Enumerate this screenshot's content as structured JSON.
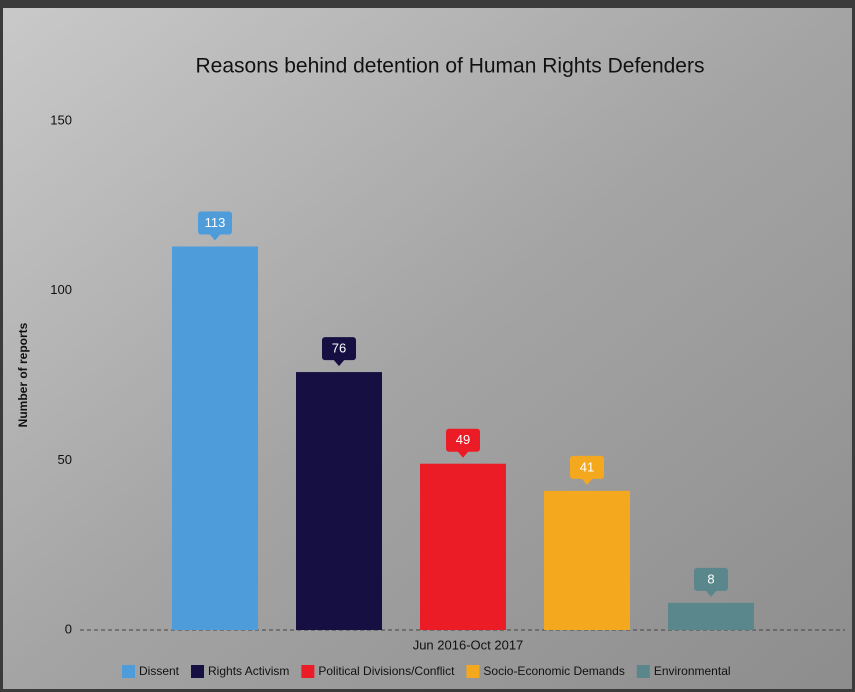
{
  "chart_data": {
    "type": "bar",
    "title": "Reasons behind detention of Human Rights Defenders",
    "y_label": "Number of reports",
    "categories": [
      "Jun 2016-Oct 2017"
    ],
    "series": [
      {
        "name": "Dissent",
        "color": "#4f9cdb",
        "values": [
          113
        ]
      },
      {
        "name": "Rights Activism",
        "color": "#160f42",
        "values": [
          76
        ]
      },
      {
        "name": "Political Divisions/Conflict",
        "color": "#ec1c27",
        "values": [
          49
        ]
      },
      {
        "name": "Socio-Economic Demands",
        "color": "#f3a81e",
        "values": [
          41
        ]
      },
      {
        "name": "Environmental",
        "color": "#5a878b",
        "values": [
          8
        ]
      }
    ],
    "ylim": [
      0,
      160
    ],
    "yticks": [
      0,
      50,
      100,
      150
    ],
    "grid": false,
    "legend": "bottom"
  }
}
